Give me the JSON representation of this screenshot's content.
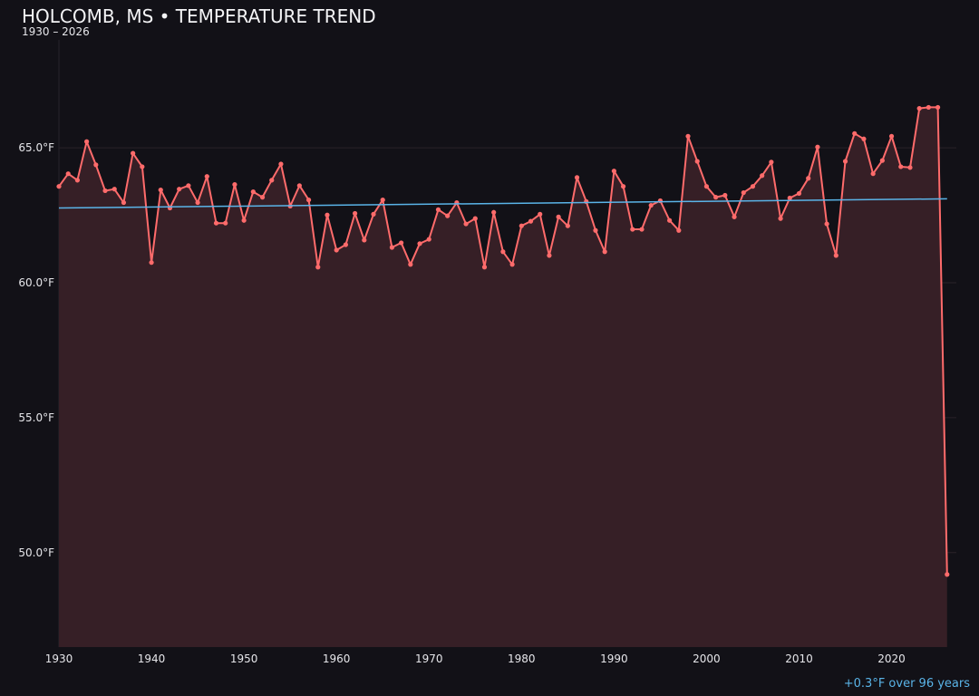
{
  "chart_data": {
    "type": "line",
    "title": "HOLCOMB, MS • TEMPERATURE TREND",
    "subtitle": "1930 – 2026",
    "annotation": "+0.3°F over 96 years",
    "xlabel": "",
    "ylabel": "",
    "xlim": [
      1930,
      2027
    ],
    "ylim": [
      46.5,
      69
    ],
    "grid": true,
    "x_ticks": [
      1930,
      1940,
      1950,
      1960,
      1970,
      1980,
      1990,
      2000,
      2010,
      2020
    ],
    "y_ticks": [
      50,
      55,
      60,
      65
    ],
    "y_tick_labels": [
      "50.0°F",
      "55.0°F",
      "60.0°F",
      "65.0°F"
    ],
    "colors": {
      "line": "#ff6b6b",
      "fill": "#361f26",
      "trend": "#5ab4e8",
      "background": "#121117"
    },
    "x": [
      1930,
      1931,
      1932,
      1933,
      1934,
      1935,
      1936,
      1937,
      1938,
      1939,
      1940,
      1941,
      1942,
      1943,
      1944,
      1945,
      1946,
      1947,
      1948,
      1949,
      1950,
      1951,
      1952,
      1953,
      1954,
      1955,
      1956,
      1957,
      1958,
      1959,
      1960,
      1961,
      1962,
      1963,
      1964,
      1965,
      1966,
      1967,
      1968,
      1969,
      1970,
      1971,
      1972,
      1973,
      1974,
      1975,
      1976,
      1977,
      1978,
      1979,
      1980,
      1981,
      1982,
      1983,
      1984,
      1985,
      1986,
      1987,
      1988,
      1989,
      1990,
      1991,
      1992,
      1993,
      1994,
      1995,
      1996,
      1997,
      1998,
      1999,
      2000,
      2001,
      2002,
      2003,
      2004,
      2005,
      2006,
      2007,
      2008,
      2009,
      2010,
      2011,
      2012,
      2013,
      2014,
      2015,
      2016,
      2017,
      2018,
      2019,
      2020,
      2021,
      2022,
      2023,
      2024,
      2025,
      2026
    ],
    "values": [
      63.57,
      64.04,
      63.8,
      65.23,
      64.37,
      63.41,
      63.47,
      62.97,
      64.8,
      64.3,
      60.75,
      63.44,
      62.77,
      63.47,
      63.6,
      62.97,
      63.94,
      62.21,
      62.21,
      63.64,
      62.31,
      63.37,
      63.17,
      63.8,
      64.4,
      62.84,
      63.6,
      63.07,
      60.58,
      62.51,
      61.21,
      61.41,
      62.57,
      61.58,
      62.54,
      63.07,
      61.31,
      61.48,
      60.68,
      61.45,
      61.61,
      62.71,
      62.48,
      62.97,
      62.18,
      62.38,
      60.58,
      62.61,
      61.15,
      60.68,
      62.11,
      62.28,
      62.54,
      61.01,
      62.44,
      62.11,
      63.9,
      63.01,
      61.94,
      61.15,
      64.14,
      63.57,
      61.98,
      61.98,
      62.87,
      63.04,
      62.31,
      61.94,
      65.43,
      64.5,
      63.57,
      63.17,
      63.24,
      62.44,
      63.34,
      63.57,
      63.97,
      64.47,
      62.38,
      63.14,
      63.31,
      63.87,
      65.03,
      62.18,
      61.01,
      64.5,
      65.53,
      65.33,
      64.04,
      64.53,
      65.43,
      64.3,
      64.27,
      66.46,
      66.5,
      66.5,
      49.19
    ],
    "trend": {
      "start": [
        1930,
        62.77
      ],
      "end": [
        2026,
        63.11
      ]
    }
  }
}
